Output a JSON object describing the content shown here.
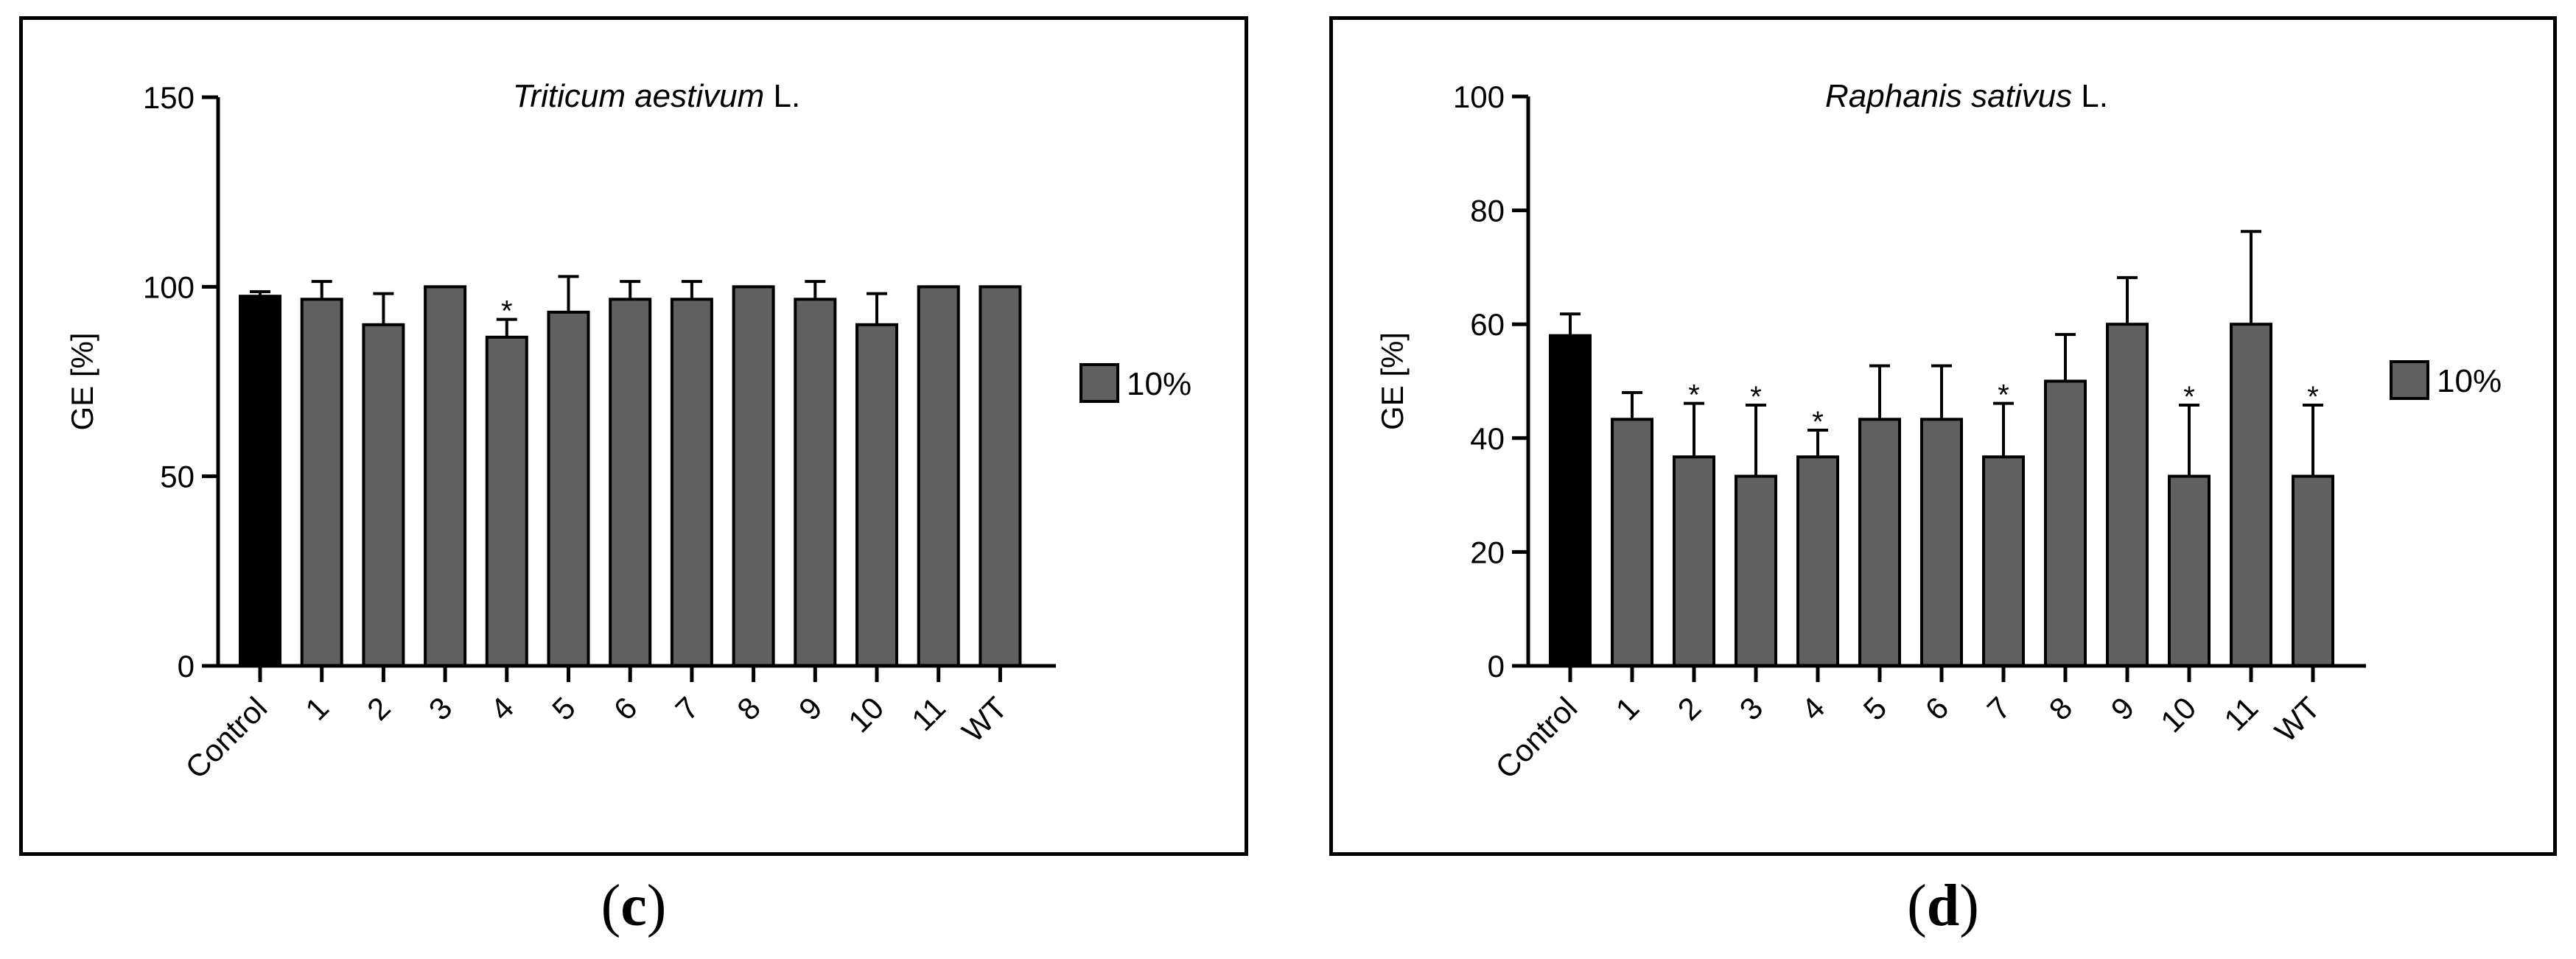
{
  "chart_data": [
    {
      "id": "c",
      "type": "bar",
      "title_italic": "Triticum aestivum",
      "title_rest": " L.",
      "ylabel": "GE [%]",
      "xlabel": "",
      "ylim": [
        0,
        150
      ],
      "yticks": [
        0,
        50,
        100,
        150
      ],
      "categories": [
        "Control",
        "1",
        "2",
        "3",
        "4",
        "5",
        "6",
        "7",
        "8",
        "9",
        "10",
        "11",
        "WT"
      ],
      "series": [
        {
          "name": "10%",
          "values": [
            97.5,
            96.7,
            90,
            100,
            86.7,
            93.3,
            96.7,
            96.7,
            100,
            96.7,
            90,
            100,
            100
          ],
          "errors": [
            1.2,
            4.7,
            8.2,
            0,
            4.7,
            9.4,
            4.7,
            4.7,
            0,
            4.7,
            8.2,
            0,
            0
          ],
          "significant": [
            false,
            false,
            false,
            false,
            true,
            false,
            false,
            false,
            false,
            false,
            false,
            false,
            false
          ]
        }
      ],
      "legend": [
        {
          "label": "10%",
          "color": "#606060"
        }
      ],
      "legend_position": "right",
      "colors": {
        "control": "#000000",
        "bars": "#606060"
      },
      "significance_marker": "*",
      "sublabel_prefix": "(",
      "sublabel_letter": "c",
      "sublabel_suffix": ")"
    },
    {
      "id": "d",
      "type": "bar",
      "title_italic": "Raphanis sativus",
      "title_rest": " L.",
      "ylabel": "GE [%]",
      "xlabel": "",
      "ylim": [
        0,
        100
      ],
      "yticks": [
        0,
        20,
        40,
        60,
        80,
        100
      ],
      "categories": [
        "Control",
        "1",
        "2",
        "3",
        "4",
        "5",
        "6",
        "7",
        "8",
        "9",
        "10",
        "11",
        "WT"
      ],
      "series": [
        {
          "name": "10%",
          "values": [
            58,
            43.3,
            36.7,
            33.3,
            36.7,
            43.3,
            43.3,
            36.7,
            50,
            60,
            33.3,
            60,
            33.3
          ],
          "errors": [
            3.8,
            4.7,
            9.4,
            12.5,
            4.7,
            9.4,
            9.4,
            9.4,
            8.2,
            8.2,
            12.5,
            16.3,
            12.5
          ],
          "significant": [
            false,
            false,
            true,
            true,
            true,
            false,
            false,
            true,
            false,
            false,
            true,
            false,
            true
          ]
        }
      ],
      "legend": [
        {
          "label": "10%",
          "color": "#606060"
        }
      ],
      "legend_position": "right",
      "colors": {
        "control": "#000000",
        "bars": "#606060"
      },
      "significance_marker": "*",
      "sublabel_prefix": "(",
      "sublabel_letter": "d",
      "sublabel_suffix": ")"
    }
  ]
}
